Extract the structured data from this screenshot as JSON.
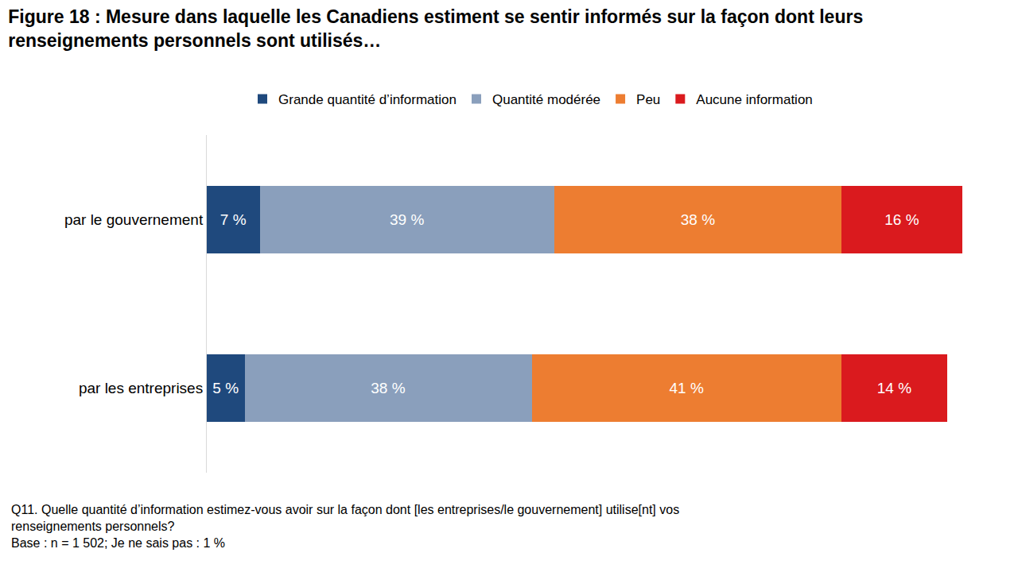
{
  "chart_data": {
    "type": "bar",
    "orientation": "horizontal",
    "stacked": true,
    "title": "Figure 18 : Mesure dans laquelle les Canadiens estiment se sentir informés sur la façon dont leurs renseignements personnels sont utilisés…",
    "categories": [
      "par le gouvernement",
      "par les entreprises"
    ],
    "series": [
      {
        "name": "Grande quantité d’information",
        "color": "#1f497d",
        "values": [
          7,
          5
        ],
        "value_labels": [
          "7 %",
          "5 %"
        ]
      },
      {
        "name": "Quantité modérée",
        "color": "#8a9fbc",
        "values": [
          39,
          38
        ],
        "value_labels": [
          "39 %",
          "38 %"
        ]
      },
      {
        "name": "Peu",
        "color": "#ed7d31",
        "values": [
          38,
          41
        ],
        "value_labels": [
          "38 %",
          "41 %"
        ]
      },
      {
        "name": "Aucune information",
        "color": "#da1a1e",
        "values": [
          16,
          14
        ],
        "value_labels": [
          "16 %",
          "14 %"
        ]
      }
    ],
    "xlim": [
      0,
      100
    ],
    "data_labels": true,
    "tick_labels": "y",
    "grid": false,
    "legend": "top",
    "notes": [
      "Q11. Quelle quantité d’information estimez-vous avoir sur la façon dont [les entreprises/le gouvernement] utilise[nt] vos renseignements personnels?",
      "Base : n = 1 502; Je ne sais pas : 1 %"
    ]
  }
}
